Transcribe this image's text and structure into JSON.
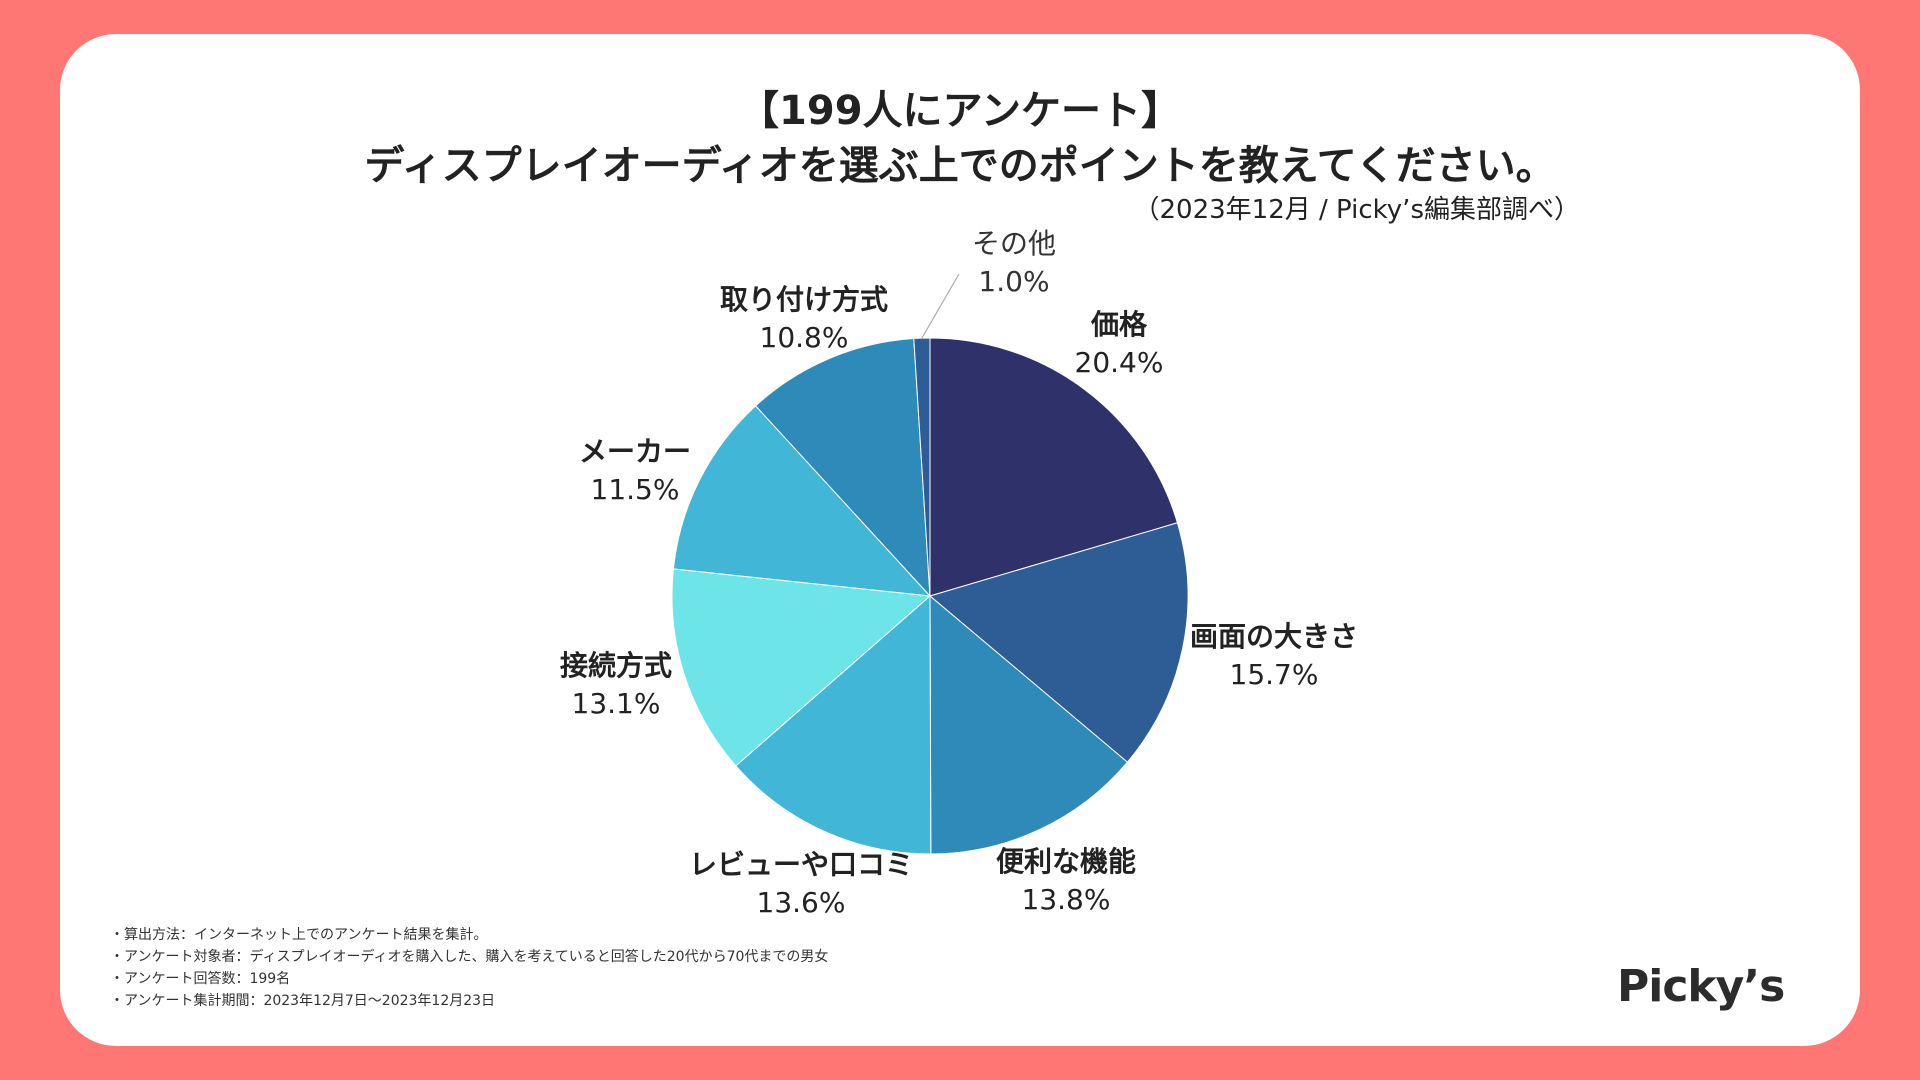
{
  "title_line1": "【199人にアンケート】",
  "title_line2": "ディスプレイオーディオを選ぶ上でのポイントを教えてください。",
  "source": "（2023年12月 / Picky’s編集部調べ）",
  "notes": [
    "・算出方法：インターネット上でのアンケート結果を集計。",
    "・アンケート対象者：ディスプレイオーディオを購入した、購入を考えていると回答した20代から70代までの男女",
    "・アンケート回答数：199名",
    "・アンケート集計期間：2023年12月7日〜2023年12月23日"
  ],
  "logo": "Picky’s",
  "colors": {
    "background": "#ff7774",
    "card": "#ffffff"
  },
  "chart_data": {
    "type": "pie",
    "start": "12 o'clock",
    "direction": "clockwise",
    "unit": "%",
    "categories": [
      "価格",
      "画面の大きさ",
      "便利な機能",
      "レビューや口コミ",
      "接続方式",
      "メーカー",
      "取り付け方式",
      "その他"
    ],
    "values": [
      20.4,
      15.7,
      13.8,
      13.6,
      13.1,
      11.5,
      10.8,
      1.0
    ],
    "labels": [
      "20.4%",
      "15.7%",
      "13.8%",
      "13.6%",
      "13.1%",
      "11.5%",
      "10.8%",
      "1.0%"
    ],
    "colors": [
      "#2f316b",
      "#2e5c94",
      "#2e8bb9",
      "#42b6d6",
      "#6de4e8",
      "#42b6d6",
      "#2e8bb9",
      "#2e5c94"
    ]
  }
}
